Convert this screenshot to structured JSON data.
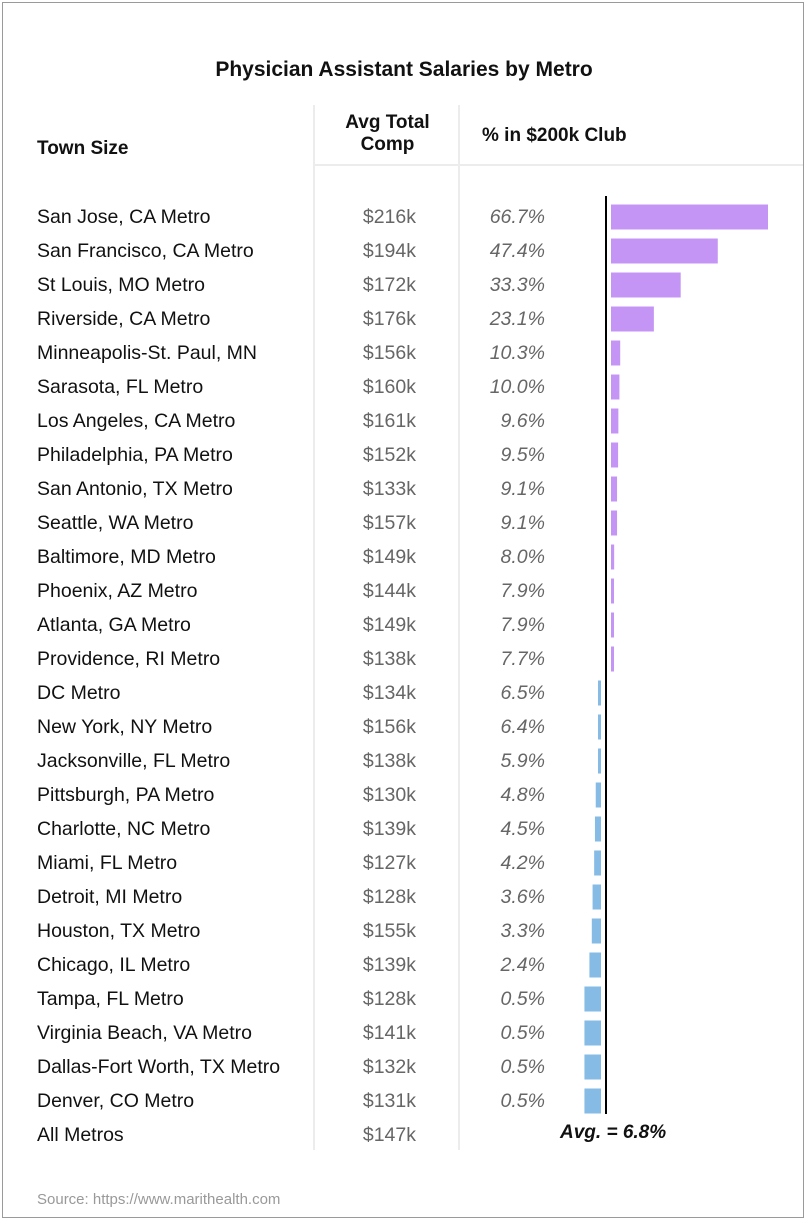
{
  "chart_data": {
    "type": "bar",
    "title": "Physician Assistant Salaries by Metro",
    "columns": [
      "Town Size",
      "Avg Total Comp",
      "% in $200k Club"
    ],
    "comp_header_lines": [
      "Avg Total",
      "Comp"
    ],
    "rows": [
      {
        "town": "San Jose, CA Metro",
        "comp": "$216k",
        "pct_label": "66.7%",
        "pct": 66.7
      },
      {
        "town": "San Francisco, CA Metro",
        "comp": "$194k",
        "pct_label": "47.4%",
        "pct": 47.4
      },
      {
        "town": "St Louis, MO Metro",
        "comp": "$172k",
        "pct_label": "33.3%",
        "pct": 33.3
      },
      {
        "town": "Riverside, CA Metro",
        "comp": "$176k",
        "pct_label": "23.1%",
        "pct": 23.1
      },
      {
        "town": "Minneapolis-St. Paul, MN",
        "comp": "$156k",
        "pct_label": "10.3%",
        "pct": 10.3
      },
      {
        "town": "Sarasota, FL Metro",
        "comp": "$160k",
        "pct_label": "10.0%",
        "pct": 10.0
      },
      {
        "town": "Los Angeles, CA Metro",
        "comp": "$161k",
        "pct_label": "9.6%",
        "pct": 9.6
      },
      {
        "town": "Philadelphia, PA Metro",
        "comp": "$152k",
        "pct_label": "9.5%",
        "pct": 9.5
      },
      {
        "town": "San Antonio, TX Metro",
        "comp": "$133k",
        "pct_label": "9.1%",
        "pct": 9.1
      },
      {
        "town": "Seattle, WA Metro",
        "comp": "$157k",
        "pct_label": "9.1%",
        "pct": 9.1
      },
      {
        "town": "Baltimore, MD Metro",
        "comp": "$149k",
        "pct_label": "8.0%",
        "pct": 8.0
      },
      {
        "town": "Phoenix, AZ Metro",
        "comp": "$144k",
        "pct_label": "7.9%",
        "pct": 7.9
      },
      {
        "town": "Atlanta, GA Metro",
        "comp": "$149k",
        "pct_label": "7.9%",
        "pct": 7.9
      },
      {
        "town": "Providence, RI Metro",
        "comp": "$138k",
        "pct_label": "7.7%",
        "pct": 7.7
      },
      {
        "town": "DC Metro",
        "comp": "$134k",
        "pct_label": "6.5%",
        "pct": 6.5
      },
      {
        "town": "New York, NY Metro",
        "comp": "$156k",
        "pct_label": "6.4%",
        "pct": 6.4
      },
      {
        "town": "Jacksonville, FL Metro",
        "comp": "$138k",
        "pct_label": "5.9%",
        "pct": 5.9
      },
      {
        "town": "Pittsburgh, PA Metro",
        "comp": "$130k",
        "pct_label": "4.8%",
        "pct": 4.8
      },
      {
        "town": "Charlotte, NC Metro",
        "comp": "$139k",
        "pct_label": "4.5%",
        "pct": 4.5
      },
      {
        "town": "Miami, FL Metro",
        "comp": "$127k",
        "pct_label": "4.2%",
        "pct": 4.2
      },
      {
        "town": "Detroit, MI Metro",
        "comp": "$128k",
        "pct_label": "3.6%",
        "pct": 3.6
      },
      {
        "town": "Houston, TX Metro",
        "comp": "$155k",
        "pct_label": "3.3%",
        "pct": 3.3
      },
      {
        "town": "Chicago, IL Metro",
        "comp": "$139k",
        "pct_label": "2.4%",
        "pct": 2.4
      },
      {
        "town": "Tampa, FL Metro",
        "comp": "$128k",
        "pct_label": "0.5%",
        "pct": 0.5
      },
      {
        "town": "Virginia Beach, VA Metro",
        "comp": "$141k",
        "pct_label": "0.5%",
        "pct": 0.5
      },
      {
        "town": "Dallas-Fort Worth, TX Metro",
        "comp": "$132k",
        "pct_label": "0.5%",
        "pct": 0.5
      },
      {
        "town": "Denver, CO Metro",
        "comp": "$131k",
        "pct_label": "0.5%",
        "pct": 0.5
      }
    ],
    "total_row": {
      "town": "All Metros",
      "comp": "$147k"
    },
    "average": 6.8,
    "average_label": "Avg. = 6.8%",
    "colors": {
      "above": "#c595f5",
      "below": "#85bbe4",
      "axis": "#000000"
    }
  },
  "source": "Source: https://www.marithealth.com"
}
